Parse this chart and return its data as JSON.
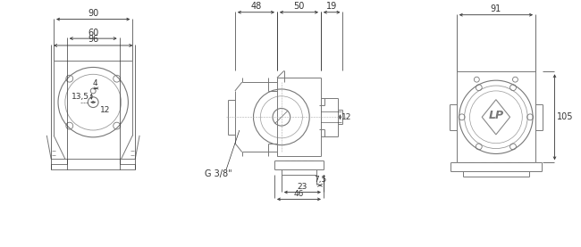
{
  "bg_color": "#ffffff",
  "lc": "#777777",
  "lc2": "#999999",
  "dc": "#333333",
  "fs": 7,
  "fig_w": 6.5,
  "fig_h": 2.77,
  "dims": {
    "front_top": "90",
    "front_b1": "60",
    "front_b2": "96",
    "front_4": "4",
    "front_135": "13,5",
    "front_12": "12",
    "side_48": "48",
    "side_50": "50",
    "side_19": "19",
    "side_12": "12",
    "side_75": "7,5",
    "side_23": "23",
    "side_46": "46",
    "side_g": "G 3/8\"",
    "rear_91": "91",
    "rear_105": "105"
  }
}
